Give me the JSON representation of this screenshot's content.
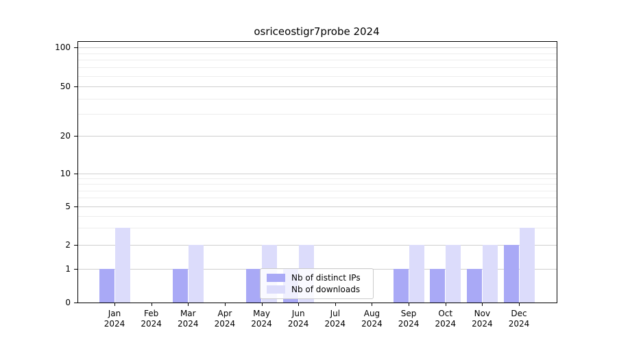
{
  "chart_data": {
    "type": "bar",
    "title": "osriceostigr7probe 2024",
    "categories": [
      "Jan",
      "Feb",
      "Mar",
      "Apr",
      "May",
      "Jun",
      "Jul",
      "Aug",
      "Sep",
      "Oct",
      "Nov",
      "Dec"
    ],
    "category_year": "2024",
    "series": [
      {
        "name": "Nb of distinct IPs",
        "color": "#a9a9f6",
        "values": [
          1,
          0,
          1,
          0,
          1,
          1,
          0,
          0,
          1,
          1,
          1,
          2
        ]
      },
      {
        "name": "Nb of downloads",
        "color": "#dcdcfb",
        "values": [
          3,
          0,
          2,
          0,
          2,
          2,
          0,
          0,
          2,
          2,
          2,
          3
        ]
      }
    ],
    "yscale": "symlog",
    "ylim": [
      0,
      110
    ],
    "y_major_ticks": [
      0,
      1,
      2,
      5,
      10,
      20,
      50,
      100
    ],
    "y_minor_ticks": [
      3,
      4,
      6,
      7,
      8,
      9,
      30,
      40,
      60,
      70,
      80,
      90
    ],
    "xlabel": "",
    "ylabel": "",
    "grid": "horizontal",
    "legend_position": "lower center"
  }
}
